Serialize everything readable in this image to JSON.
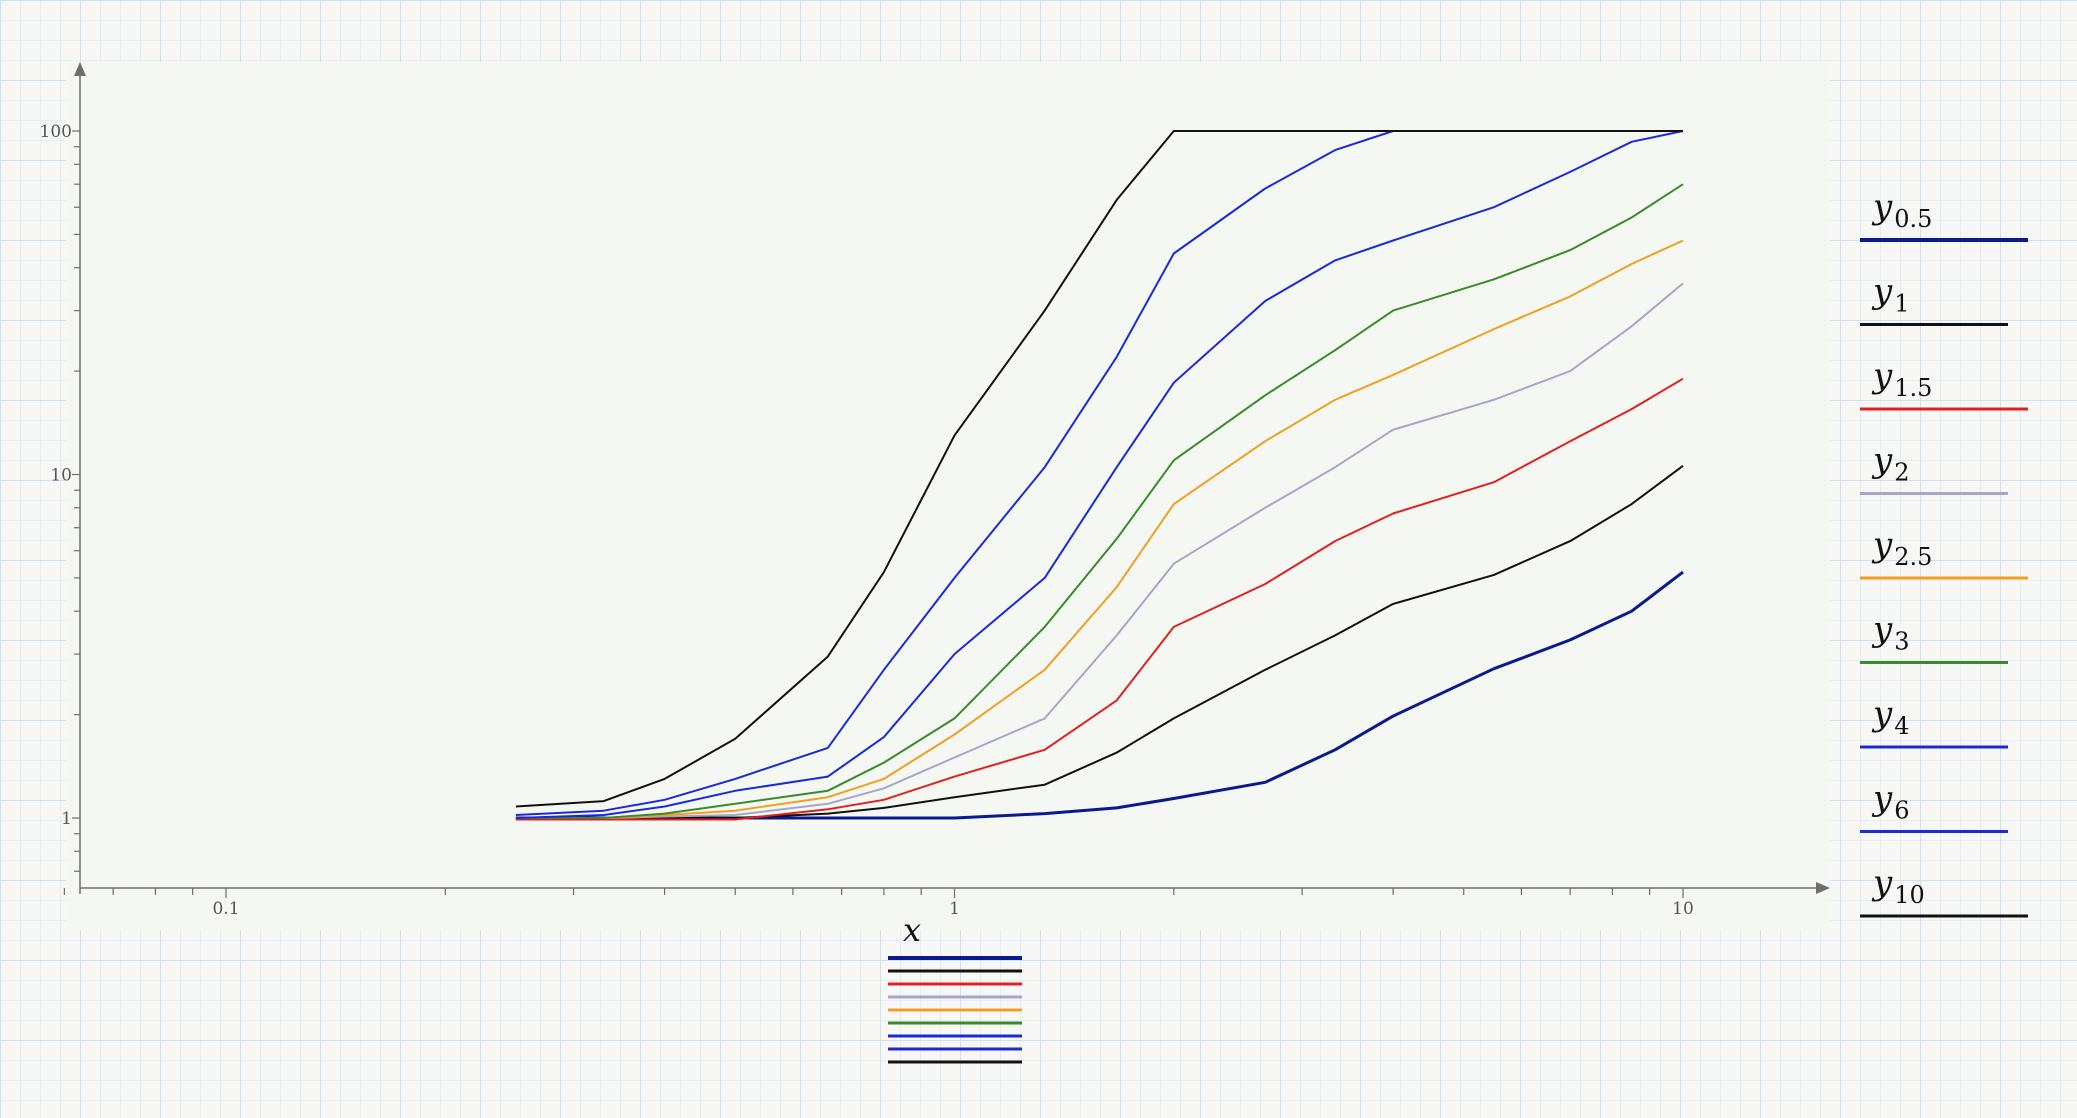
{
  "chart_data": {
    "type": "line",
    "title": "",
    "xlabel": "x",
    "ylabel": "",
    "x_scale": "log",
    "y_scale": "log",
    "xlim": [
      0.06,
      15
    ],
    "ylim": [
      0.63,
      140
    ],
    "x_ticks": [
      0.1,
      1,
      10
    ],
    "x_tick_labels": [
      "0.1",
      "1",
      "10"
    ],
    "y_ticks": [
      1,
      10,
      100
    ],
    "y_tick_labels": [
      "1",
      "10",
      "100"
    ],
    "grid": false,
    "legend_position": "right",
    "x": [
      0.25,
      0.33,
      0.4,
      0.5,
      0.67,
      0.8,
      1,
      1.33,
      1.67,
      2,
      2.67,
      3.33,
      4,
      5.5,
      7,
      8.5,
      10
    ],
    "series": [
      {
        "name": "y",
        "subscript": "0.5",
        "color": "#0a1a8c",
        "width": 3,
        "values": [
          1.0,
          1.0,
          1.0,
          1.0,
          1.0,
          1.0,
          1.0,
          1.03,
          1.07,
          1.14,
          1.27,
          1.58,
          1.98,
          2.72,
          3.3,
          4.0,
          5.2
        ]
      },
      {
        "name": "y",
        "subscript": "1",
        "color": "#111111",
        "width": 2,
        "values": [
          1.0,
          1.0,
          1.0,
          1.0,
          1.03,
          1.07,
          1.15,
          1.25,
          1.55,
          1.95,
          2.7,
          3.4,
          4.2,
          5.1,
          6.4,
          8.2,
          10.6
        ]
      },
      {
        "name": "y",
        "subscript": "1.5",
        "color": "#e02020",
        "width": 2,
        "values": [
          0.99,
          0.99,
          0.99,
          0.99,
          1.06,
          1.13,
          1.32,
          1.58,
          2.2,
          3.6,
          4.8,
          6.4,
          7.7,
          9.5,
          12.5,
          15.5,
          19.0
        ]
      },
      {
        "name": "y",
        "subscript": "2",
        "color": "#a6a6c8",
        "width": 2,
        "values": [
          1.0,
          1.0,
          1.01,
          1.02,
          1.1,
          1.22,
          1.5,
          1.95,
          3.4,
          5.5,
          8.0,
          10.5,
          13.5,
          16.5,
          20.0,
          27.0,
          36.0
        ]
      },
      {
        "name": "y",
        "subscript": "2.5",
        "color": "#f0a020",
        "width": 2,
        "values": [
          1.0,
          1.0,
          1.02,
          1.05,
          1.15,
          1.3,
          1.75,
          2.7,
          4.7,
          8.2,
          12.5,
          16.5,
          19.5,
          26.5,
          33.0,
          41.0,
          48.0
        ]
      },
      {
        "name": "y",
        "subscript": "3",
        "color": "#3a8a2a",
        "width": 2,
        "values": [
          1.0,
          1.0,
          1.03,
          1.1,
          1.2,
          1.45,
          1.95,
          3.6,
          6.5,
          11.0,
          17.0,
          23.0,
          30.0,
          37.0,
          45.0,
          56.0,
          70.0
        ]
      },
      {
        "name": "y",
        "subscript": "4",
        "color": "#1a2ad8",
        "width": 2,
        "values": [
          1.0,
          1.02,
          1.08,
          1.2,
          1.32,
          1.72,
          3.0,
          5.0,
          10.5,
          18.5,
          32.0,
          42.0,
          48.0,
          60.0,
          76.0,
          93.0,
          100.0
        ]
      },
      {
        "name": "y",
        "subscript": "6",
        "color": "#1a2ad8",
        "width": 2,
        "values": [
          1.02,
          1.05,
          1.13,
          1.3,
          1.6,
          2.7,
          5.0,
          10.5,
          22.0,
          44.0,
          68.0,
          88.0,
          100.0,
          100.0,
          100.0,
          100.0,
          100.0
        ]
      },
      {
        "name": "y",
        "subscript": "10",
        "color": "#111111",
        "width": 2,
        "values": [
          1.08,
          1.12,
          1.3,
          1.7,
          2.95,
          5.2,
          13.0,
          30.0,
          63.0,
          100.0,
          100.0,
          100.0,
          100.0,
          100.0,
          100.0,
          100.0,
          100.0
        ]
      }
    ]
  }
}
